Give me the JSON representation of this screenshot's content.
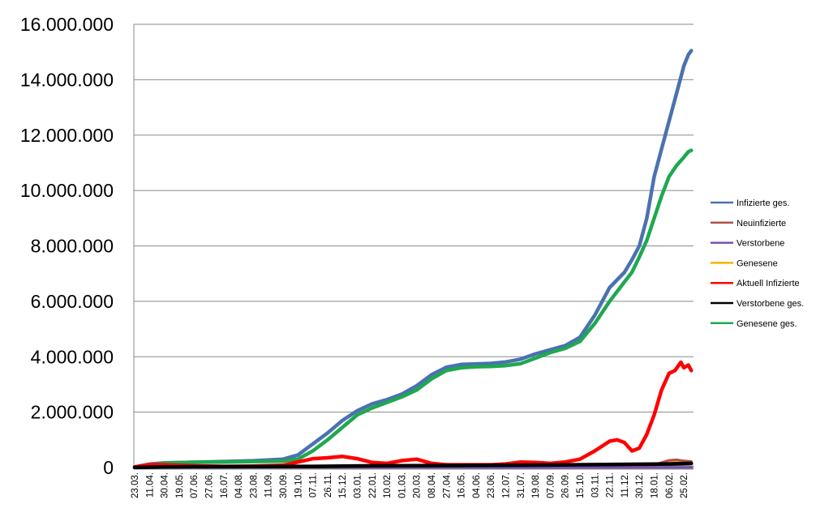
{
  "chart_data": {
    "type": "line",
    "title": "",
    "xlabel": "",
    "ylabel": "",
    "ylim": [
      0,
      16000000
    ],
    "yticks": [
      "0",
      "2.000.000",
      "4.000.000",
      "6.000.000",
      "8.000.000",
      "10.000.000",
      "12.000.000",
      "14.000.000",
      "16.000.000"
    ],
    "ytick_values": [
      0,
      2000000,
      4000000,
      6000000,
      8000000,
      10000000,
      12000000,
      14000000,
      16000000
    ],
    "grid": true,
    "legend_position": "right",
    "categories": [
      "23.03.",
      "11.04.",
      "30.04.",
      "19.05.",
      "07.06.",
      "27.06.",
      "16.07.",
      "04.08.",
      "23.08.",
      "11.09.",
      "30.09.",
      "19.10.",
      "07.11.",
      "26.11.",
      "15.12.",
      "03.01.",
      "22.01.",
      "10.02.",
      "01.03.",
      "20.03.",
      "08.04.",
      "27.04.",
      "16.05.",
      "04.06.",
      "23.06.",
      "12.07.",
      "31.07.",
      "19.08.",
      "07.09.",
      "26.09.",
      "15.10.",
      "03.11.",
      "22.11.",
      "11.12.",
      "30.12.",
      "18.01.",
      "06.02.",
      "25.02."
    ],
    "series": [
      {
        "name": "Infizierte ges.",
        "color": "#4a72b0",
        "x": [
          0,
          1,
          2,
          4,
          6,
          8,
          10,
          11,
          12,
          13,
          14,
          15,
          16,
          17,
          18,
          19,
          20,
          21,
          22,
          23,
          24,
          25,
          26,
          27,
          28,
          29,
          30,
          31,
          32,
          33,
          33.5,
          34,
          34.5,
          35,
          35.5,
          36,
          36.5,
          37,
          37.3,
          37.5
        ],
        "y": [
          20000,
          120000,
          170000,
          190000,
          215000,
          245000,
          300000,
          450000,
          850000,
          1250000,
          1700000,
          2050000,
          2300000,
          2450000,
          2650000,
          2950000,
          3350000,
          3620000,
          3720000,
          3740000,
          3760000,
          3810000,
          3910000,
          4100000,
          4250000,
          4400000,
          4700000,
          5500000,
          6500000,
          7050000,
          7500000,
          8000000,
          9000000,
          10500000,
          11500000,
          12500000,
          13500000,
          14500000,
          14900000,
          15050000
        ]
      },
      {
        "name": "Neuinfizierte",
        "color": "#b0504e",
        "x": [
          0,
          4,
          8,
          12,
          16,
          20,
          24,
          28,
          32,
          35,
          35.5,
          36,
          36.5,
          37,
          37.5
        ],
        "y": [
          5000,
          8000,
          10000,
          20000,
          25000,
          20000,
          15000,
          15000,
          30000,
          60000,
          180000,
          260000,
          280000,
          240000,
          220000
        ]
      },
      {
        "name": "Verstorbene",
        "color": "#7a4fb0",
        "x": [
          0,
          4,
          8,
          12,
          16,
          20,
          24,
          28,
          32,
          36,
          37.5
        ],
        "y": [
          500,
          1000,
          1000,
          2000,
          2000,
          2000,
          1000,
          1000,
          2000,
          3000,
          3000
        ]
      },
      {
        "name": "Genesene",
        "color": "#f2b300",
        "x": [
          0,
          4,
          8,
          12,
          16,
          20,
          24,
          28,
          32,
          34,
          35,
          36,
          36.5,
          37,
          37.5
        ],
        "y": [
          2000,
          4000,
          4000,
          10000,
          18000,
          15000,
          10000,
          10000,
          20000,
          60000,
          140000,
          200000,
          230000,
          240000,
          220000
        ]
      },
      {
        "name": "Aktuell Infizierte",
        "color": "#ff0000",
        "x": [
          0,
          1,
          2,
          4,
          6,
          8,
          10,
          11,
          12,
          13,
          14,
          15,
          16,
          17,
          18,
          19,
          20,
          21,
          22,
          23,
          24,
          25,
          26,
          27,
          28,
          29,
          30,
          31,
          32,
          32.5,
          33,
          33.5,
          34,
          34.5,
          35,
          35.5,
          36,
          36.4,
          36.8,
          37,
          37.3,
          37.5
        ],
        "y": [
          20000,
          110000,
          100000,
          60000,
          40000,
          50000,
          80000,
          200000,
          320000,
          350000,
          400000,
          320000,
          180000,
          150000,
          250000,
          300000,
          150000,
          100000,
          100000,
          100000,
          100000,
          130000,
          200000,
          180000,
          150000,
          200000,
          300000,
          600000,
          950000,
          1000000,
          900000,
          600000,
          700000,
          1200000,
          1900000,
          2800000,
          3400000,
          3500000,
          3800000,
          3600000,
          3700000,
          3500000
        ]
      },
      {
        "name": "Verstorbene ges.",
        "color": "#000000",
        "x": [
          0,
          2,
          4,
          8,
          12,
          16,
          20,
          24,
          28,
          32,
          36,
          37.5
        ],
        "y": [
          2000,
          20000,
          30000,
          35000,
          40000,
          60000,
          70000,
          80000,
          90000,
          110000,
          130000,
          150000
        ]
      },
      {
        "name": "Genesene ges.",
        "color": "#1fa84f",
        "x": [
          0,
          1,
          2,
          4,
          6,
          8,
          10,
          11,
          12,
          13,
          14,
          15,
          16,
          17,
          18,
          19,
          20,
          21,
          22,
          23,
          24,
          25,
          26,
          27,
          28,
          29,
          30,
          31,
          32,
          33,
          33.5,
          34,
          34.5,
          35,
          35.5,
          36,
          36.5,
          37,
          37.3,
          37.5
        ],
        "y": [
          0,
          80000,
          160000,
          190000,
          200000,
          215000,
          230000,
          300000,
          600000,
          1000000,
          1450000,
          1900000,
          2150000,
          2350000,
          2550000,
          2800000,
          3200000,
          3500000,
          3600000,
          3640000,
          3650000,
          3680000,
          3750000,
          3950000,
          4150000,
          4300000,
          4550000,
          5200000,
          6000000,
          6700000,
          7050000,
          7600000,
          8200000,
          9000000,
          9800000,
          10500000,
          10900000,
          11200000,
          11400000,
          11450000
        ]
      }
    ]
  }
}
